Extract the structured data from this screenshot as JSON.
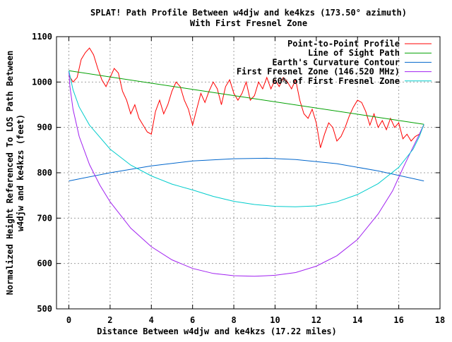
{
  "chart_data": {
    "type": "line",
    "title": "SPLAT! Path Profile Between w4djw and ke4kzs (173.50° azimuth)",
    "subtitle": "With First Fresnel Zone",
    "xlabel": "Distance Between w4djw and ke4kzs (17.22 miles)",
    "ylabel_line1": "Normalized Height Referenced To LOS Path Between",
    "ylabel_line2": "w4djw and ke4kzs (feet)",
    "xlim": [
      -0.6,
      18
    ],
    "ylim": [
      500,
      1100
    ],
    "x_ticks": [
      0,
      2,
      4,
      6,
      8,
      10,
      12,
      14,
      16,
      18
    ],
    "y_ticks": [
      500,
      600,
      700,
      800,
      900,
      1000,
      1100
    ],
    "grid": true,
    "legend_position": "top-right",
    "series": [
      {
        "name": "Point-to-Point Profile",
        "color": "#ff0000",
        "x": [
          0,
          0.2,
          0.4,
          0.6,
          0.8,
          1.0,
          1.2,
          1.4,
          1.6,
          1.8,
          2.0,
          2.2,
          2.4,
          2.6,
          2.8,
          3.0,
          3.2,
          3.4,
          3.6,
          3.8,
          4.0,
          4.2,
          4.4,
          4.6,
          4.8,
          5.0,
          5.2,
          5.4,
          5.6,
          5.8,
          6.0,
          6.2,
          6.4,
          6.6,
          6.8,
          7.0,
          7.2,
          7.4,
          7.6,
          7.8,
          8.0,
          8.2,
          8.4,
          8.6,
          8.8,
          9.0,
          9.2,
          9.4,
          9.6,
          9.8,
          10.0,
          10.2,
          10.4,
          10.6,
          10.8,
          11.0,
          11.2,
          11.4,
          11.6,
          11.8,
          12.0,
          12.2,
          12.4,
          12.6,
          12.8,
          13.0,
          13.2,
          13.4,
          13.6,
          13.8,
          14.0,
          14.2,
          14.4,
          14.6,
          14.8,
          15.0,
          15.2,
          15.4,
          15.6,
          15.8,
          16.0,
          16.2,
          16.4,
          16.6,
          16.8,
          17.0,
          17.22
        ],
        "values": [
          1015,
          1000,
          1010,
          1050,
          1065,
          1075,
          1060,
          1030,
          1005,
          990,
          1010,
          1030,
          1020,
          980,
          960,
          930,
          950,
          920,
          905,
          890,
          885,
          935,
          960,
          930,
          950,
          980,
          1000,
          990,
          960,
          940,
          905,
          940,
          975,
          955,
          980,
          1000,
          985,
          950,
          990,
          1005,
          975,
          960,
          975,
          1000,
          960,
          970,
          1000,
          985,
          1010,
          985,
          1005,
          990,
          1010,
          1000,
          985,
          1005,
          960,
          930,
          920,
          940,
          910,
          855,
          885,
          910,
          900,
          870,
          880,
          900,
          925,
          945,
          960,
          955,
          935,
          905,
          930,
          900,
          915,
          895,
          920,
          900,
          910,
          875,
          885,
          870,
          880,
          885,
          905
        ]
      },
      {
        "name": "Line of Sight Path",
        "color": "#00a000",
        "x": [
          0,
          17.22
        ],
        "values": [
          1025,
          907
        ]
      },
      {
        "name": "Earth's Curvature Contour",
        "color": "#0066cc",
        "x": [
          0,
          2,
          4,
          6,
          8,
          9.6,
          11,
          13,
          15,
          17.22
        ],
        "values": [
          782,
          800,
          815,
          826,
          831,
          832,
          829,
          820,
          804,
          782
        ]
      },
      {
        "name": "First Fresnel Zone (146.520 MHz)",
        "color": "#a020f0",
        "x": [
          0,
          0.05,
          0.2,
          0.5,
          1,
          1.5,
          2,
          3,
          4,
          5,
          6,
          7,
          8,
          9,
          9.6,
          10,
          11,
          12,
          13,
          14,
          15,
          15.7,
          16.2,
          16.7,
          17.0,
          17.15,
          17.22
        ],
        "values": [
          1025,
          990,
          940,
          880,
          818,
          773,
          736,
          678,
          637,
          608,
          589,
          578,
          573,
          572,
          573,
          574,
          580,
          594,
          617,
          653,
          709,
          760,
          810,
          857,
          885,
          900,
          907
        ]
      },
      {
        "name": "60% of First Fresnel Zone",
        "color": "#00cccc",
        "x": [
          0,
          0.2,
          0.5,
          1,
          2,
          3,
          4,
          5,
          6,
          7,
          8,
          9,
          10,
          11,
          12,
          13,
          14,
          15,
          16,
          16.7,
          17.0,
          17.22
        ],
        "values": [
          1025,
          983,
          945,
          905,
          852,
          817,
          793,
          775,
          762,
          748,
          737,
          730,
          726,
          725,
          727,
          736,
          752,
          776,
          812,
          852,
          880,
          907
        ]
      }
    ]
  }
}
